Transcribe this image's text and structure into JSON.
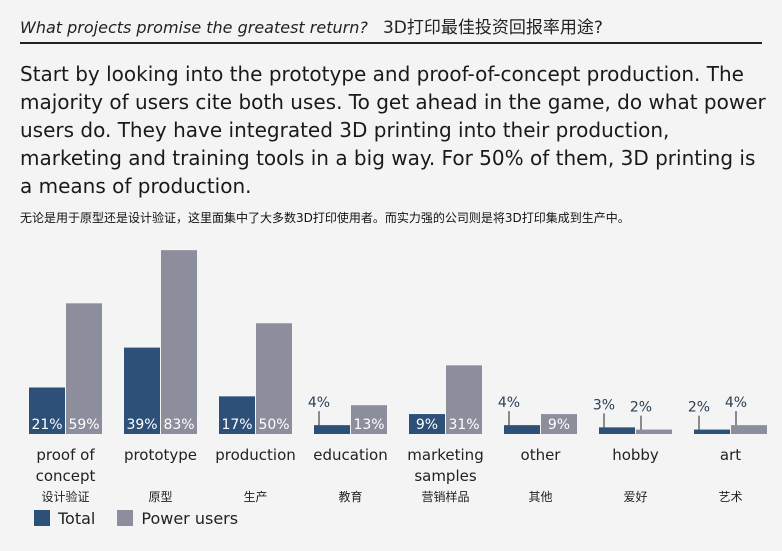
{
  "header": {
    "title_en": "What projects promise the greatest return?",
    "title_zh": "3D打印最佳投资回报率用途?"
  },
  "intro": {
    "text_en": "Start by looking into the prototype and proof-of-concept production. The majority of users cite both uses. To get ahead in the game, do what power users do. They have integrated 3D printing into their production, marketing and training tools in a big way. For 50% of them, 3D printing is a means of production.",
    "text_zh": "无论是用于原型还是设计验证，这里面集中了大多数3D打印使用者。而实力强的公司则是将3D打印集成到生产中。"
  },
  "colors": {
    "total": "#2c5078",
    "power": "#8d8e9c",
    "background": "#f4f4f4"
  },
  "chart_data": {
    "type": "bar",
    "categories": [
      "proof of concept",
      "prototype",
      "production",
      "education",
      "marketing samples",
      "other",
      "hobby",
      "art"
    ],
    "categories_zh": [
      "设计验证",
      "原型",
      "生产",
      "教育",
      "营销样品",
      "其他",
      "爱好",
      "艺术"
    ],
    "series": [
      {
        "name": "Total",
        "values": [
          21,
          39,
          17,
          4,
          9,
          4,
          3,
          2
        ],
        "labels": [
          "21%",
          "39%",
          "17%",
          "4%",
          "9%",
          "4%",
          "3%",
          "2%"
        ]
      },
      {
        "name": "Power users",
        "values": [
          59,
          83,
          50,
          13,
          31,
          9,
          2,
          4
        ],
        "labels": [
          "59%",
          "83%",
          "50%",
          "13%",
          "31%",
          "9%",
          "2%",
          "4%"
        ]
      }
    ],
    "ylim": [
      0,
      100
    ],
    "legend": "bottom-left",
    "grid": false
  }
}
